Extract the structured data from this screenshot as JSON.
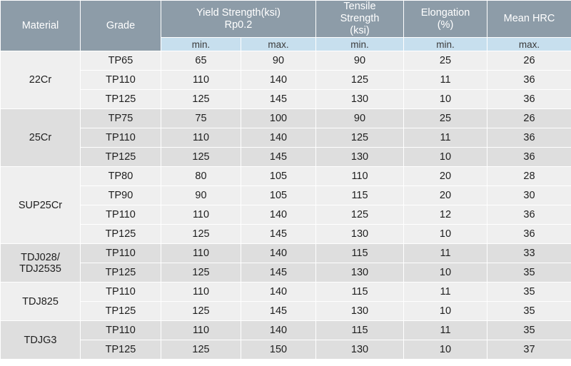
{
  "headers": {
    "material": "Material",
    "grade": "Grade",
    "yield_strength_line1": "Yield Strength(ksi)",
    "yield_strength_line2": "Rp0.2",
    "tensile_line1": "Tensile",
    "tensile_line2": "Strength",
    "tensile_line3": "(ksi)",
    "elongation_line1": "Elongation",
    "elongation_line2": "(%)",
    "mean_hrc": "Mean HRC"
  },
  "subheaders": {
    "yield_min": "min.",
    "yield_max": "max.",
    "tensile_min": "min.",
    "elongation_min": "min.",
    "hrc_max": "max."
  },
  "groups": [
    {
      "material": "22Cr",
      "rows": [
        {
          "grade": "TP65",
          "ys_min": "65",
          "ys_max": "90",
          "ts_min": "90",
          "el_min": "25",
          "hrc_max": "26"
        },
        {
          "grade": "TP110",
          "ys_min": "110",
          "ys_max": "140",
          "ts_min": "125",
          "el_min": "11",
          "hrc_max": "36"
        },
        {
          "grade": "TP125",
          "ys_min": "125",
          "ys_max": "145",
          "ts_min": "130",
          "el_min": "10",
          "hrc_max": "36"
        }
      ]
    },
    {
      "material": "25Cr",
      "rows": [
        {
          "grade": "TP75",
          "ys_min": "75",
          "ys_max": "100",
          "ts_min": "90",
          "el_min": "25",
          "hrc_max": "26"
        },
        {
          "grade": "TP110",
          "ys_min": "110",
          "ys_max": "140",
          "ts_min": "125",
          "el_min": "11",
          "hrc_max": "36"
        },
        {
          "grade": "TP125",
          "ys_min": "125",
          "ys_max": "145",
          "ts_min": "130",
          "el_min": "10",
          "hrc_max": "36"
        }
      ]
    },
    {
      "material": "SUP25Cr",
      "rows": [
        {
          "grade": "TP80",
          "ys_min": "80",
          "ys_max": "105",
          "ts_min": "110",
          "el_min": "20",
          "hrc_max": "28"
        },
        {
          "grade": "TP90",
          "ys_min": "90",
          "ys_max": "105",
          "ts_min": "115",
          "el_min": "20",
          "hrc_max": "30"
        },
        {
          "grade": "TP110",
          "ys_min": "110",
          "ys_max": "140",
          "ts_min": "125",
          "el_min": "12",
          "hrc_max": "36"
        },
        {
          "grade": "TP125",
          "ys_min": "125",
          "ys_max": "145",
          "ts_min": "130",
          "el_min": "10",
          "hrc_max": "36"
        }
      ]
    },
    {
      "material": "TDJ028/\nTDJ2535",
      "rows": [
        {
          "grade": "TP110",
          "ys_min": "110",
          "ys_max": "140",
          "ts_min": "115",
          "el_min": "11",
          "hrc_max": "33"
        },
        {
          "grade": "TP125",
          "ys_min": "125",
          "ys_max": "145",
          "ts_min": "130",
          "el_min": "10",
          "hrc_max": "35"
        }
      ]
    },
    {
      "material": "TDJ825",
      "rows": [
        {
          "grade": "TP110",
          "ys_min": "110",
          "ys_max": "140",
          "ts_min": "115",
          "el_min": "11",
          "hrc_max": "35"
        },
        {
          "grade": "TP125",
          "ys_min": "125",
          "ys_max": "145",
          "ts_min": "130",
          "el_min": "10",
          "hrc_max": "35"
        }
      ]
    },
    {
      "material": "TDJG3",
      "rows": [
        {
          "grade": "TP110",
          "ys_min": "110",
          "ys_max": "140",
          "ts_min": "115",
          "el_min": "11",
          "hrc_max": "35"
        },
        {
          "grade": "TP125",
          "ys_min": "125",
          "ys_max": "150",
          "ts_min": "130",
          "el_min": "10",
          "hrc_max": "37"
        }
      ]
    }
  ],
  "colors": {
    "header_bg": "#8d9ca8",
    "subheader_bg": "#c7dfee",
    "row_light": "#efefef",
    "row_dark": "#dedede"
  }
}
